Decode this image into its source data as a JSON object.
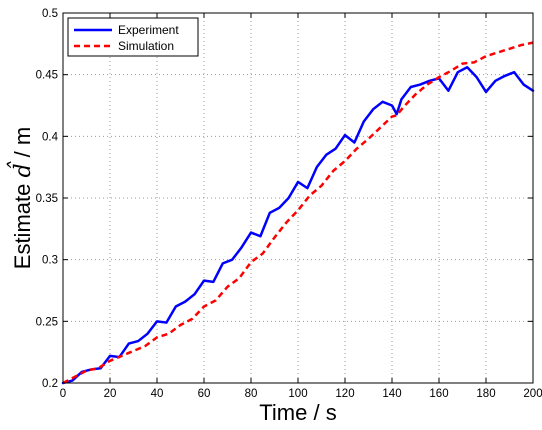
{
  "chart_data": {
    "type": "line",
    "xlabel": "Time / s",
    "ylabel_prefix": "Estimate ",
    "ylabel_symbol": "d̂",
    "ylabel_suffix": " / m",
    "xlim": [
      0,
      200
    ],
    "ylim": [
      0.2,
      0.5
    ],
    "xticks": [
      0,
      20,
      40,
      60,
      80,
      100,
      120,
      140,
      160,
      180,
      200
    ],
    "xtick_labels": [
      "0",
      "20",
      "40",
      "60",
      "80",
      "100",
      "120",
      "140",
      "160",
      "180",
      "200"
    ],
    "yticks": [
      0.2,
      0.25,
      0.3,
      0.35,
      0.4,
      0.45,
      0.5
    ],
    "ytick_labels": [
      "0.2",
      "0.25",
      "0.3",
      "0.35",
      "0.4",
      "0.45",
      "0.5"
    ],
    "grid": true,
    "grid_style": "dotted",
    "legend_position": "top-left",
    "series": [
      {
        "name": "Experiment",
        "color": "#0000ff",
        "line_style": "solid",
        "x": [
          0,
          4,
          8,
          12,
          16,
          20,
          24,
          28,
          32,
          36,
          40,
          44,
          48,
          52,
          56,
          60,
          64,
          68,
          72,
          76,
          80,
          84,
          88,
          92,
          96,
          100,
          104,
          108,
          112,
          116,
          120,
          124,
          128,
          132,
          136,
          140,
          142,
          144,
          148,
          152,
          156,
          160,
          164,
          168,
          172,
          176,
          180,
          184,
          188,
          192,
          196,
          200
        ],
        "y": [
          0.2,
          0.202,
          0.209,
          0.211,
          0.212,
          0.222,
          0.221,
          0.232,
          0.234,
          0.24,
          0.25,
          0.249,
          0.262,
          0.266,
          0.272,
          0.283,
          0.282,
          0.297,
          0.3,
          0.31,
          0.322,
          0.319,
          0.338,
          0.342,
          0.35,
          0.363,
          0.358,
          0.375,
          0.385,
          0.39,
          0.401,
          0.395,
          0.412,
          0.422,
          0.428,
          0.425,
          0.418,
          0.43,
          0.44,
          0.442,
          0.445,
          0.447,
          0.437,
          0.452,
          0.456,
          0.448,
          0.436,
          0.445,
          0.449,
          0.452,
          0.442,
          0.437
        ]
      },
      {
        "name": "Simulation",
        "color": "#ff0000",
        "line_style": "dashed",
        "x": [
          0,
          5,
          10,
          15,
          20,
          25,
          30,
          35,
          40,
          45,
          50,
          55,
          60,
          65,
          70,
          75,
          80,
          85,
          90,
          95,
          100,
          105,
          110,
          115,
          120,
          125,
          130,
          135,
          140,
          142,
          145,
          150,
          155,
          160,
          165,
          170,
          175,
          180,
          185,
          190,
          195,
          200
        ],
        "y": [
          0.2,
          0.205,
          0.21,
          0.212,
          0.218,
          0.222,
          0.226,
          0.23,
          0.237,
          0.24,
          0.247,
          0.252,
          0.262,
          0.267,
          0.278,
          0.285,
          0.298,
          0.305,
          0.318,
          0.33,
          0.34,
          0.352,
          0.36,
          0.372,
          0.38,
          0.39,
          0.398,
          0.407,
          0.416,
          0.417,
          0.424,
          0.434,
          0.442,
          0.448,
          0.453,
          0.459,
          0.46,
          0.465,
          0.468,
          0.471,
          0.474,
          0.476
        ]
      }
    ]
  }
}
